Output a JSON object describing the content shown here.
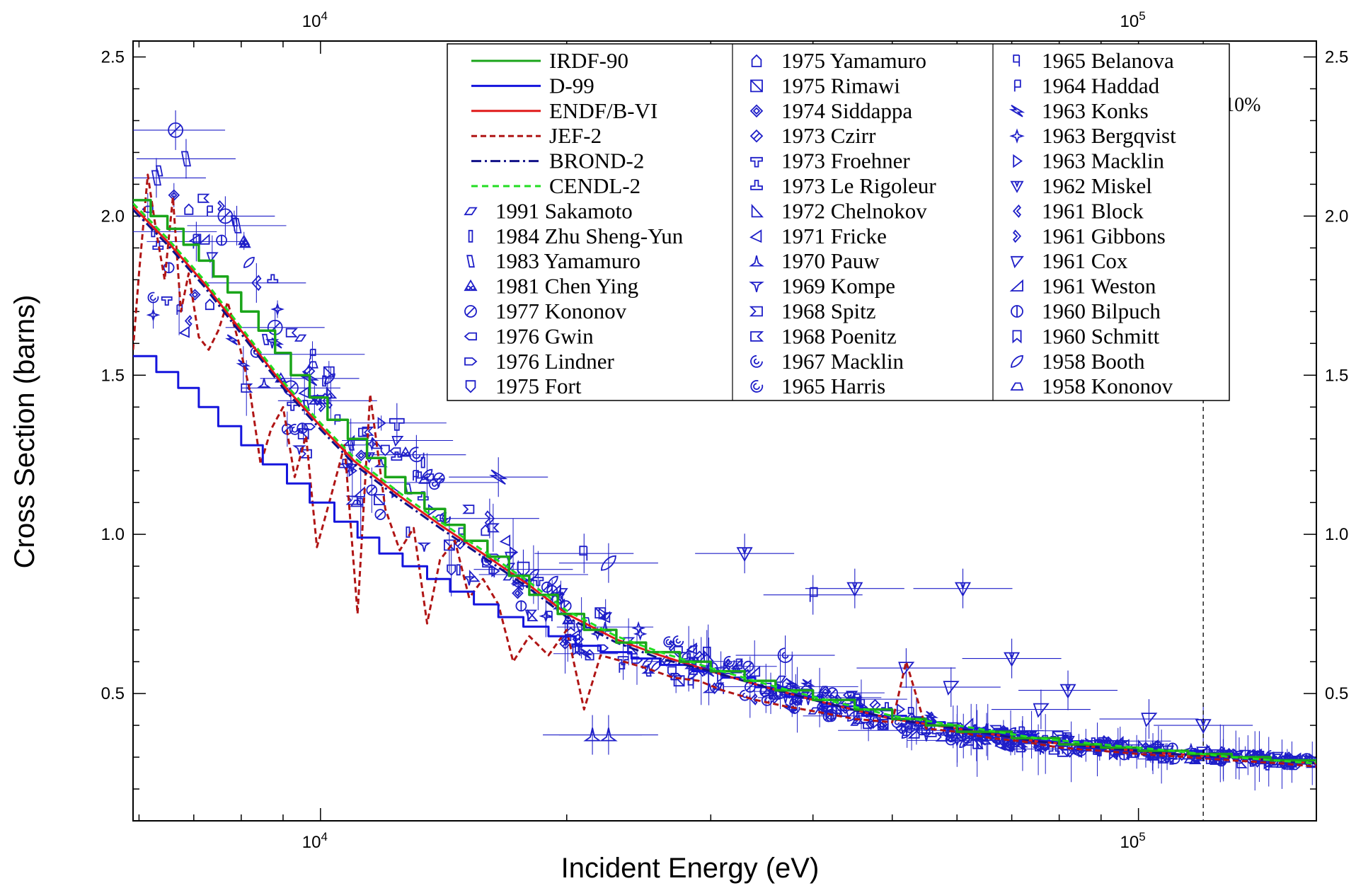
{
  "chart_data": {
    "type": "line",
    "xlabel": "Incident Energy  (eV)",
    "ylabel": "Cross Section  (barns)",
    "xscale": "log",
    "xlim": [
      5900,
      165000
    ],
    "ylim": [
      0.1,
      2.55
    ],
    "x_ticks": [
      {
        "value": 10000,
        "label": "10",
        "exp": "4"
      },
      {
        "value": 100000,
        "label": "10",
        "exp": "5"
      }
    ],
    "y_ticks": [
      {
        "value": 0.5,
        "label": "0.5"
      },
      {
        "value": 1.0,
        "label": "1.0"
      },
      {
        "value": 1.5,
        "label": "1.5"
      },
      {
        "value": 2.0,
        "label": "2.0"
      },
      {
        "value": 2.5,
        "label": "2.5"
      }
    ],
    "grid": false,
    "legend_position": "top-right",
    "annotations": [
      {
        "text": "10%",
        "x": 120000
      }
    ],
    "reference_line": {
      "x": 120000
    },
    "series": [
      {
        "name": "IRDF-90",
        "color": "#1aa51a",
        "dash": "solid",
        "style": "step",
        "x": [
          5900,
          6200,
          6500,
          6800,
          7100,
          7400,
          7700,
          8000,
          8400,
          8800,
          9200,
          9700,
          10200,
          10800,
          11400,
          12000,
          12700,
          13400,
          14200,
          15000,
          16000,
          17000,
          18000,
          19500,
          21000,
          23000,
          25000,
          27500,
          30000,
          33000,
          36000,
          40000,
          45000,
          50000,
          55000,
          60000,
          70000,
          80000,
          90000,
          100000,
          115000,
          130000,
          145000,
          165000
        ],
        "y": [
          2.05,
          2.0,
          1.96,
          1.91,
          1.86,
          1.81,
          1.76,
          1.7,
          1.64,
          1.57,
          1.5,
          1.43,
          1.36,
          1.3,
          1.24,
          1.18,
          1.13,
          1.08,
          1.03,
          0.98,
          0.93,
          0.87,
          0.81,
          0.75,
          0.7,
          0.66,
          0.63,
          0.6,
          0.57,
          0.54,
          0.51,
          0.48,
          0.45,
          0.42,
          0.4,
          0.38,
          0.36,
          0.34,
          0.33,
          0.32,
          0.31,
          0.3,
          0.29,
          0.28
        ]
      },
      {
        "name": "D-99",
        "color": "#1515dd",
        "dash": "solid",
        "style": "step",
        "x": [
          5900,
          6300,
          6700,
          7100,
          7500,
          8000,
          8500,
          9100,
          9700,
          10400,
          11100,
          11800,
          12600,
          13500,
          14400,
          15400,
          16500,
          17700,
          19000,
          20500,
          22000,
          24000,
          26000,
          28500,
          31000,
          34000,
          37000,
          41000,
          46000,
          52000,
          58000,
          65000,
          75000,
          85000,
          100000,
          120000,
          140000,
          165000
        ],
        "y": [
          1.56,
          1.51,
          1.46,
          1.4,
          1.34,
          1.28,
          1.22,
          1.16,
          1.1,
          1.04,
          0.99,
          0.94,
          0.9,
          0.86,
          0.82,
          0.78,
          0.74,
          0.71,
          0.68,
          0.65,
          0.63,
          0.61,
          0.59,
          0.57,
          0.55,
          0.52,
          0.49,
          0.46,
          0.43,
          0.41,
          0.39,
          0.37,
          0.35,
          0.33,
          0.32,
          0.3,
          0.29,
          0.28
        ]
      },
      {
        "name": "ENDF/B-VI",
        "color": "#e01a1a",
        "dash": "solid",
        "style": "line",
        "x": [
          5900,
          6500,
          7200,
          8000,
          9000,
          10000,
          11000,
          12500,
          14000,
          16000,
          18000,
          20000,
          23000,
          26000,
          30000,
          35000,
          40000,
          50000,
          60000,
          75000,
          90000,
          110000,
          130000,
          165000
        ],
        "y": [
          2.03,
          1.92,
          1.79,
          1.64,
          1.47,
          1.34,
          1.23,
          1.12,
          1.03,
          0.93,
          0.84,
          0.75,
          0.67,
          0.62,
          0.57,
          0.52,
          0.48,
          0.42,
          0.39,
          0.35,
          0.33,
          0.31,
          0.3,
          0.28
        ]
      },
      {
        "name": "JEF-2",
        "color": "#b01515",
        "dash": "8,5",
        "style": "line",
        "x": [
          5900,
          6000,
          6150,
          6300,
          6450,
          6600,
          6750,
          6900,
          7100,
          7300,
          7500,
          7700,
          7950,
          8200,
          8450,
          8700,
          9000,
          9300,
          9600,
          9900,
          10300,
          10700,
          11100,
          11500,
          12000,
          12500,
          13000,
          13500,
          14000,
          14600,
          15200,
          15800,
          16500,
          17200,
          18000,
          19000,
          20000,
          21000,
          22000,
          23500,
          25000,
          27000,
          29000,
          31000,
          34000,
          37000,
          41000,
          45000,
          50000,
          52000,
          55000,
          60000,
          66000,
          72000,
          80000,
          90000,
          100000,
          115000,
          130000,
          150000,
          165000
        ],
        "y": [
          1.58,
          1.82,
          2.13,
          1.95,
          1.8,
          2.06,
          1.7,
          1.82,
          1.62,
          1.58,
          1.64,
          1.73,
          1.6,
          1.45,
          1.22,
          1.33,
          1.4,
          1.18,
          1.31,
          0.96,
          1.12,
          1.28,
          0.75,
          1.44,
          1.08,
          0.95,
          1.02,
          0.72,
          0.92,
          0.98,
          0.8,
          0.86,
          0.78,
          0.6,
          0.68,
          0.62,
          0.7,
          0.45,
          0.62,
          0.6,
          0.58,
          0.55,
          0.54,
          0.51,
          0.48,
          0.46,
          0.44,
          0.42,
          0.41,
          0.6,
          0.39,
          0.38,
          0.36,
          0.35,
          0.33,
          0.32,
          0.31,
          0.3,
          0.29,
          0.28,
          0.27
        ]
      },
      {
        "name": "BROND-2",
        "color": "#101088",
        "dash": "14,5,3,5",
        "style": "line",
        "x": [
          5900,
          6500,
          7200,
          8000,
          9000,
          10000,
          11000,
          12500,
          14000,
          16000,
          18000,
          20000,
          23000,
          26000,
          30000,
          35000,
          40000,
          50000,
          60000,
          75000,
          90000,
          110000,
          130000,
          165000
        ],
        "y": [
          2.02,
          1.91,
          1.78,
          1.63,
          1.46,
          1.33,
          1.22,
          1.11,
          1.02,
          0.92,
          0.83,
          0.74,
          0.66,
          0.61,
          0.57,
          0.52,
          0.48,
          0.42,
          0.39,
          0.35,
          0.33,
          0.31,
          0.3,
          0.28
        ]
      },
      {
        "name": "CENDL-2",
        "color": "#22dd22",
        "dash": "9,6",
        "style": "line",
        "x": [
          5900,
          6500,
          7200,
          8000,
          9000,
          10000,
          11000,
          12500,
          14000,
          16000,
          18000,
          20000,
          23000,
          26000,
          30000,
          35000,
          40000,
          50000,
          60000,
          75000,
          90000,
          110000,
          130000,
          165000
        ],
        "y": [
          2.04,
          1.93,
          1.8,
          1.65,
          1.48,
          1.35,
          1.24,
          1.13,
          1.04,
          0.94,
          0.85,
          0.76,
          0.68,
          0.63,
          0.58,
          0.53,
          0.49,
          0.43,
          0.4,
          0.36,
          0.34,
          0.32,
          0.3,
          0.28
        ]
      }
    ],
    "experiments": [
      {
        "name": "1991 Sakamoto",
        "symbol": "parallelogram"
      },
      {
        "name": "1984 Zhu Sheng-Yun",
        "symbol": "bar"
      },
      {
        "name": "1983 Yamamuro",
        "symbol": "slant-box"
      },
      {
        "name": "1981 Chen Ying",
        "symbol": "tri-circles"
      },
      {
        "name": "1977 Kononov",
        "symbol": "circle-slash"
      },
      {
        "name": "1976 Gwin",
        "symbol": "arrow-left"
      },
      {
        "name": "1976 Lindner",
        "symbol": "arrow-right"
      },
      {
        "name": "1975 Fort",
        "symbol": "shield"
      },
      {
        "name": "1975 Yamamuro",
        "symbol": "house"
      },
      {
        "name": "1975 Rimawi",
        "symbol": "square-x"
      },
      {
        "name": "1974 Siddappa",
        "symbol": "diamond-inset"
      },
      {
        "name": "1973 Czirr",
        "symbol": "diamond-line"
      },
      {
        "name": "1973 Froehner",
        "symbol": "tee"
      },
      {
        "name": "1973 Le Rigoleur",
        "symbol": "hat"
      },
      {
        "name": "1972 Chelnokov",
        "symbol": "tri-right"
      },
      {
        "name": "1971 Fricke",
        "symbol": "tri-left"
      },
      {
        "name": "1970 Pauw",
        "symbol": "tri-up"
      },
      {
        "name": "1969 Kompe",
        "symbol": "tri-down"
      },
      {
        "name": "1968 Spitz",
        "symbol": "notch-left"
      },
      {
        "name": "1968 Poenitz",
        "symbol": "notch-right"
      },
      {
        "name": "1967 Macklin",
        "symbol": "swirl"
      },
      {
        "name": "1965 Harris",
        "symbol": "spiral"
      },
      {
        "name": "1965 Belanova",
        "symbol": "flag-left"
      },
      {
        "name": "1964 Haddad",
        "symbol": "flag-right"
      },
      {
        "name": "1963 Konks",
        "symbol": "bowtie"
      },
      {
        "name": "1963 Bergqvist",
        "symbol": "star4"
      },
      {
        "name": "1963 Macklin",
        "symbol": "play"
      },
      {
        "name": "1962 Miskel",
        "symbol": "tri-down-wide"
      },
      {
        "name": "1961 Block",
        "symbol": "chevron-left"
      },
      {
        "name": "1961 Gibbons",
        "symbol": "chevron-right"
      },
      {
        "name": "1961 Cox",
        "symbol": "wedge-down"
      },
      {
        "name": "1961 Weston",
        "symbol": "wedge-up"
      },
      {
        "name": "1960 Bilpuch",
        "symbol": "circle-bar"
      },
      {
        "name": "1960 Schmitt",
        "symbol": "bookmark"
      },
      {
        "name": "1958 Booth",
        "symbol": "leaf"
      },
      {
        "name": "1958 Kononov",
        "symbol": "trapezoid"
      }
    ],
    "highlight_points": [
      {
        "x": 6300,
        "y": 2.12,
        "sym": "slant-box"
      },
      {
        "x": 6650,
        "y": 2.27,
        "sym": "circle-slash"
      },
      {
        "x": 6850,
        "y": 2.18,
        "sym": "slant-box"
      },
      {
        "x": 7050,
        "y": 1.92,
        "sym": "flag-right"
      },
      {
        "x": 7650,
        "y": 2.0,
        "sym": "circle-slash"
      },
      {
        "x": 7900,
        "y": 1.97,
        "sym": "slant-box"
      },
      {
        "x": 8350,
        "y": 1.79,
        "sym": "chevron-left"
      },
      {
        "x": 8800,
        "y": 1.65,
        "sym": "circle-slash"
      },
      {
        "x": 9200,
        "y": 1.46,
        "sym": "circle-slash"
      },
      {
        "x": 9700,
        "y": 1.49,
        "sym": "bowtie"
      },
      {
        "x": 10200,
        "y": 1.42,
        "sym": "chevron-left"
      },
      {
        "x": 12400,
        "y": 1.35,
        "sym": "tee"
      },
      {
        "x": 13100,
        "y": 1.25,
        "sym": "spiral"
      },
      {
        "x": 16500,
        "y": 1.18,
        "sym": "bowtie"
      },
      {
        "x": 16100,
        "y": 1.05,
        "sym": "chevron-right"
      },
      {
        "x": 17700,
        "y": 0.89,
        "sym": "shield"
      },
      {
        "x": 21000,
        "y": 0.94,
        "sym": "flag-left"
      },
      {
        "x": 22500,
        "y": 0.91,
        "sym": "leaf"
      },
      {
        "x": 21500,
        "y": 0.37,
        "sym": "tri-up"
      },
      {
        "x": 22500,
        "y": 0.37,
        "sym": "tri-up"
      },
      {
        "x": 33000,
        "y": 0.94,
        "sym": "tri-down-wide"
      },
      {
        "x": 40000,
        "y": 0.81,
        "sym": "flag-right"
      },
      {
        "x": 45000,
        "y": 0.83,
        "sym": "tri-down-wide"
      },
      {
        "x": 61000,
        "y": 0.83,
        "sym": "tri-down-wide"
      },
      {
        "x": 70000,
        "y": 0.61,
        "sym": "tri-down-wide"
      },
      {
        "x": 52000,
        "y": 0.58,
        "sym": "wedge-down"
      },
      {
        "x": 59000,
        "y": 0.52,
        "sym": "wedge-down"
      },
      {
        "x": 82000,
        "y": 0.51,
        "sym": "tri-down-wide"
      },
      {
        "x": 76000,
        "y": 0.45,
        "sym": "wedge-down"
      },
      {
        "x": 103000,
        "y": 0.42,
        "sym": "wedge-down"
      },
      {
        "x": 120000,
        "y": 0.4,
        "sym": "tri-down-wide"
      },
      {
        "x": 37000,
        "y": 0.62,
        "sym": "swirl"
      }
    ]
  }
}
